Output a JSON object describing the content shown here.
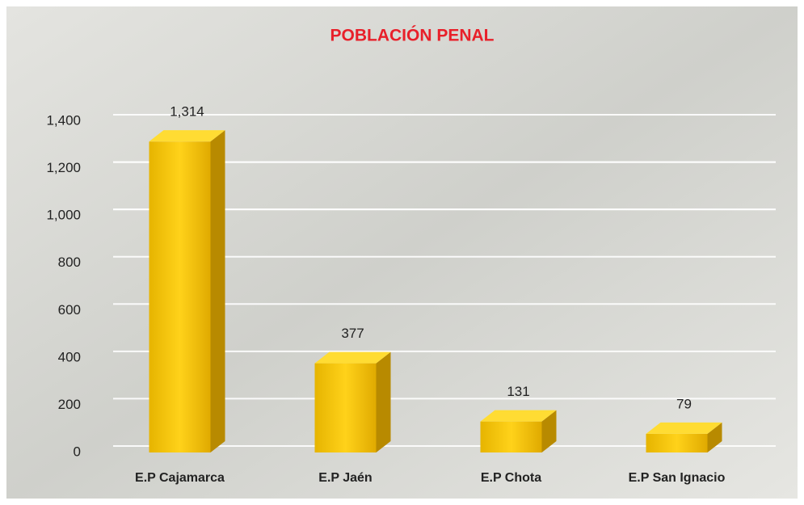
{
  "chart_data": {
    "type": "bar",
    "title": "POBLACIÓN PENAL",
    "categories": [
      "E.P Cajamarca",
      "E.P Jaén",
      "E.P Chota",
      "E.P San Ignacio"
    ],
    "values": [
      1314,
      377,
      131,
      79
    ],
    "value_labels": [
      "1,314",
      "377",
      "131",
      "79"
    ],
    "color": "#f5c400",
    "ylim": [
      0,
      1400
    ],
    "yticks": [
      0,
      200,
      400,
      600,
      800,
      1000,
      1200,
      {
        "value": 1000,
        "label": "1,000"
      },
      {
        "value": 1200,
        "label": "1,200"
      },
      {
        "value": 1400,
        "label": "1,400"
      }
    ],
    "grid": true
  }
}
